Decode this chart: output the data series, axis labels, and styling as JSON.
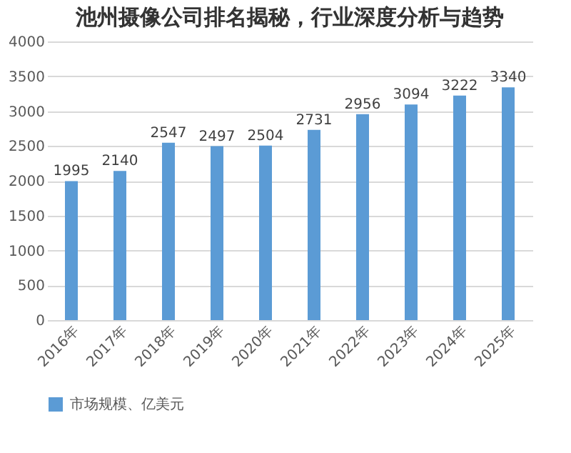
{
  "chart_data": {
    "type": "bar",
    "title": "池州摄像公司排名揭秘，行业深度分析与趋势",
    "categories": [
      "2016年",
      "2017年",
      "2018年",
      "2019年",
      "2020年",
      "2021年",
      "2022年",
      "2023年",
      "2024年",
      "2025年"
    ],
    "series": [
      {
        "name": "市场规模、亿美元",
        "color": "#5b9bd5",
        "values": [
          1995,
          2140,
          2547,
          2497,
          2504,
          2731,
          2956,
          3094,
          3222,
          3340
        ]
      }
    ],
    "ylim": [
      0,
      4000
    ],
    "yticks": [
      0,
      500,
      1000,
      1500,
      2000,
      2500,
      3000,
      3500,
      4000
    ],
    "grid": "y",
    "legend": "bottom",
    "data_labels": true
  }
}
